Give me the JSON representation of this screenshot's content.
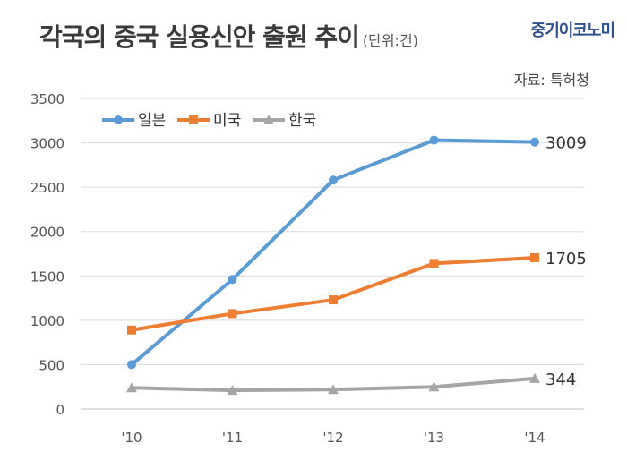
{
  "header": {
    "title": "각국의 중국 실용신안 출원 추이",
    "unit": "(단위:건)",
    "brand": "중기이코노미",
    "source": "자료: 특허청"
  },
  "chart_data": {
    "type": "line",
    "categories": [
      "'10",
      "'11",
      "'12",
      "'13",
      "'14"
    ],
    "series": [
      {
        "name": "일본",
        "color": "#5b9bd5",
        "marker": "circle",
        "values": [
          500,
          1460,
          2580,
          3030,
          3009
        ],
        "end_label": "3009"
      },
      {
        "name": "미국",
        "color": "#ed7d31",
        "marker": "square",
        "values": [
          890,
          1075,
          1230,
          1640,
          1705
        ],
        "end_label": "1705"
      },
      {
        "name": "한국",
        "color": "#a5a5a5",
        "marker": "triangle",
        "values": [
          240,
          210,
          220,
          250,
          344
        ],
        "end_label": "344"
      }
    ],
    "ylim": [
      0,
      3500
    ],
    "yticks": [
      0,
      500,
      1000,
      1500,
      2000,
      2500,
      3000,
      3500
    ],
    "grid": true,
    "legend": "top-left",
    "xlabel": "",
    "ylabel": ""
  }
}
